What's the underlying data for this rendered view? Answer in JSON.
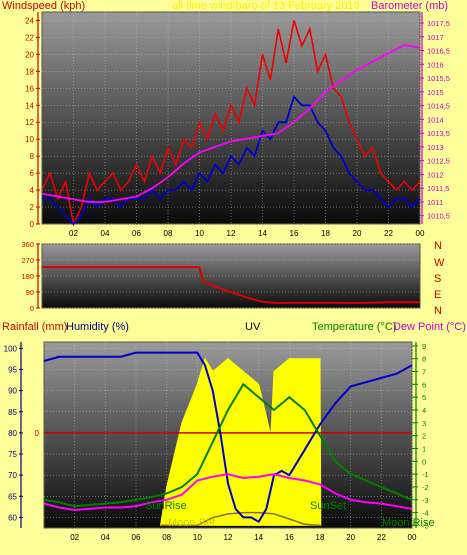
{
  "colors": {
    "background": "#ffff99",
    "windspeed": "#ee0000",
    "gust_avg": "#0000cc",
    "barometer": "#ff00ff",
    "direction": "#dd0000",
    "humidity": "#0000cc",
    "temperature": "#008000",
    "dewpoint": "#ff00ff",
    "uv": "#ffff00",
    "rain": "#cc0000",
    "solar": "#8a6a2a"
  },
  "top_chart": {
    "left_label": "Windspeed (kph)",
    "title": "all time wind/baro of 13 February 2010",
    "right_label": "Barometer (mb)"
  },
  "mid_chart": {
    "directions": [
      "N",
      "W",
      "S",
      "E",
      "N"
    ]
  },
  "bottom_chart": {
    "rain_label": "Rainfall (mm)",
    "humidity_label": "Humidity (%)",
    "uv_label": "UV",
    "temp_label": "Temperature (°C)",
    "dew_label": "Dew Point (°C)",
    "sunrise_label": "SunRise",
    "sunset_label": "SunSet",
    "moonset_label": "Moon Set",
    "moonrise_label": "Moon Rise"
  },
  "chart_data": [
    {
      "type": "line",
      "name": "wind-baro",
      "x_ticks": [
        "02",
        "04",
        "06",
        "08",
        "10",
        "12",
        "14",
        "16",
        "18",
        "20",
        "22",
        "00"
      ],
      "xlim": [
        0,
        24
      ],
      "y_left_ticks": [
        "0",
        "2",
        "4",
        "6",
        "8",
        "10",
        "12",
        "14",
        "16",
        "18",
        "20",
        "22",
        "24"
      ],
      "ylim_left": [
        0,
        25
      ],
      "y_right_ticks": [
        "1010,5",
        "1011",
        "1011,5",
        "1012",
        "1012,5",
        "1013",
        "1013,5",
        "1014",
        "1014,5",
        "1015",
        "1015,5",
        "1016",
        "1016,5",
        "1017",
        "1017,5"
      ],
      "ylim_right": [
        1010.2,
        1017.9
      ],
      "series": [
        {
          "key": "windspeed",
          "axis": "left",
          "x": [
            0,
            0.5,
            1,
            1.5,
            2,
            2.5,
            3,
            3.5,
            4,
            4.5,
            5,
            5.5,
            6,
            6.5,
            7,
            7.5,
            8,
            8.5,
            9,
            9.5,
            10,
            10.5,
            11,
            11.5,
            12,
            12.5,
            13,
            13.5,
            14,
            14.5,
            15,
            15.5,
            16,
            16.5,
            17,
            17.5,
            18,
            18.5,
            19,
            19.5,
            20,
            20.5,
            21,
            21.5,
            22,
            22.5,
            23,
            23.5,
            24
          ],
          "y": [
            4,
            6,
            3,
            5,
            0,
            2,
            6,
            4,
            5,
            6,
            4,
            5,
            7,
            5,
            8,
            6,
            9,
            7,
            10,
            9,
            12,
            10,
            13,
            11,
            14,
            12,
            16,
            14,
            20,
            17,
            23,
            19,
            24,
            21,
            23,
            18,
            20,
            16,
            15,
            12,
            10,
            8,
            9,
            6,
            5,
            4,
            5,
            4,
            5
          ]
        },
        {
          "key": "gust_avg",
          "axis": "left",
          "x": [
            0,
            0.5,
            1,
            1.5,
            2,
            2.5,
            3,
            3.5,
            4,
            4.5,
            5,
            5.5,
            6,
            6.5,
            7,
            7.5,
            8,
            8.5,
            9,
            9.5,
            10,
            10.5,
            11,
            11.5,
            12,
            12.5,
            13,
            13.5,
            14,
            14.5,
            15,
            15.5,
            16,
            16.5,
            17,
            17.5,
            18,
            18.5,
            19,
            19.5,
            20,
            20.5,
            21,
            21.5,
            22,
            22.5,
            23,
            23.5,
            24
          ],
          "y": [
            3,
            3,
            2,
            1,
            0,
            1,
            3,
            2,
            3,
            3,
            2,
            3,
            3,
            3,
            4,
            3,
            4,
            4,
            5,
            4,
            6,
            5,
            7,
            6,
            8,
            7,
            9,
            8,
            11,
            10,
            12,
            12,
            15,
            14,
            14,
            12,
            11,
            9,
            8,
            6,
            5,
            4,
            4,
            3,
            2,
            3,
            3,
            2,
            3
          ]
        },
        {
          "key": "barometer",
          "axis": "right",
          "x": [
            0,
            1,
            2,
            3,
            4,
            5,
            6,
            7,
            8,
            9,
            10,
            11,
            12,
            13,
            14,
            15,
            16,
            17,
            18,
            19,
            20,
            21,
            22,
            23,
            24
          ],
          "y": [
            1011.3,
            1011.2,
            1011.1,
            1011.0,
            1011.0,
            1011.1,
            1011.2,
            1011.5,
            1011.9,
            1012.4,
            1012.8,
            1013.0,
            1013.2,
            1013.3,
            1013.4,
            1013.5,
            1013.9,
            1014.4,
            1015.0,
            1015.4,
            1015.8,
            1016.1,
            1016.4,
            1016.7,
            1016.6
          ]
        }
      ]
    },
    {
      "type": "line",
      "name": "wind-direction",
      "xlim": [
        0,
        24
      ],
      "y_ticks": [
        "0",
        "90",
        "180",
        "270",
        "360"
      ],
      "ylim": [
        0,
        360
      ],
      "series": [
        {
          "key": "direction",
          "x": [
            0,
            2,
            4,
            6,
            8,
            10,
            10.2,
            11,
            12,
            13,
            14,
            15,
            16,
            18,
            20,
            22,
            24
          ],
          "y": [
            230,
            230,
            230,
            230,
            230,
            230,
            150,
            120,
            90,
            60,
            35,
            28,
            30,
            30,
            28,
            32,
            32
          ]
        }
      ]
    },
    {
      "type": "line",
      "name": "temp-hum-uv",
      "x_ticks": [
        "02",
        "04",
        "06",
        "08",
        "10",
        "12",
        "14",
        "16",
        "18",
        "20",
        "22",
        "00"
      ],
      "xlim": [
        0,
        24
      ],
      "y_left_ticks": [
        "60",
        "65",
        "70",
        "75",
        "80",
        "85",
        "90",
        "95",
        "100"
      ],
      "ylim_left": [
        57.5,
        101.5
      ],
      "rain_zero_label": "0",
      "y_right_ticks": [
        "-5",
        "-4",
        "-3",
        "-2",
        "-1",
        "0",
        "1",
        "2",
        "3",
        "4",
        "5",
        "6",
        "7",
        "8",
        "9"
      ],
      "ylim_right": [
        -5.2,
        9.3
      ],
      "series": [
        {
          "key": "humidity",
          "axis": "left",
          "x": [
            0,
            1,
            2,
            3,
            4,
            5,
            6,
            7,
            8,
            9,
            10,
            10.5,
            11,
            11.5,
            12,
            12.5,
            13,
            13.5,
            14,
            14.5,
            15,
            15.5,
            16,
            17,
            18,
            19,
            20,
            21,
            22,
            23,
            24
          ],
          "y": [
            97,
            98,
            98,
            98,
            98,
            98,
            99,
            99,
            99,
            99,
            99,
            96,
            90,
            80,
            68,
            62,
            60,
            60,
            59,
            62,
            70,
            71,
            70,
            76,
            82,
            87,
            91,
            92,
            93,
            94,
            96
          ]
        },
        {
          "key": "temperature",
          "axis": "right",
          "x": [
            0,
            1,
            2,
            3,
            4,
            5,
            6,
            7,
            8,
            9,
            10,
            11,
            12,
            13,
            14,
            15,
            16,
            17,
            18,
            19,
            20,
            21,
            22,
            23,
            24
          ],
          "y": [
            -3,
            -3.2,
            -3.5,
            -3.4,
            -3.3,
            -3.2,
            -3.0,
            -2.8,
            -2.5,
            -2,
            -1,
            1.5,
            4,
            6,
            5,
            4,
            5,
            4,
            2,
            0,
            -1,
            -1.5,
            -2,
            -2.5,
            -3
          ]
        },
        {
          "key": "dewpoint",
          "axis": "right",
          "x": [
            0,
            1,
            2,
            3,
            4,
            5,
            6,
            7,
            8,
            9,
            10,
            11,
            12,
            13,
            14,
            15,
            16,
            17,
            18,
            19,
            20,
            21,
            22,
            23,
            24
          ],
          "y": [
            -3.3,
            -3.6,
            -3.8,
            -3.7,
            -3.6,
            -3.6,
            -3.5,
            -3.2,
            -3.0,
            -2.6,
            -1.5,
            -1.2,
            -1.0,
            -1.3,
            -1.2,
            -1.0,
            -1.3,
            -1.5,
            -1.8,
            -2.5,
            -3.0,
            -3.2,
            -3.3,
            -3.5,
            -3.7
          ]
        },
        {
          "key": "uv",
          "axis": "right",
          "x": [
            7.6,
            8,
            9,
            10,
            10.5,
            11,
            12,
            13,
            14,
            14.8,
            15,
            16,
            17,
            18,
            18.05
          ],
          "y": [
            -5,
            -2,
            3,
            6,
            8,
            7,
            8,
            7,
            6,
            2,
            7,
            8,
            8,
            8,
            -5
          ]
        },
        {
          "key": "rain",
          "axis": "left",
          "x": [
            0,
            24
          ],
          "y": [
            80,
            80
          ]
        },
        {
          "key": "solar",
          "axis": "right",
          "x": [
            7.6,
            10,
            10.5,
            11,
            12,
            13,
            14,
            15,
            16,
            17,
            18,
            18.05
          ],
          "y": [
            -5,
            -5,
            -4.7,
            -4.4,
            -4.1,
            -4,
            -4,
            -4.1,
            -4.5,
            -4.9,
            -5,
            -5
          ]
        }
      ]
    }
  ]
}
